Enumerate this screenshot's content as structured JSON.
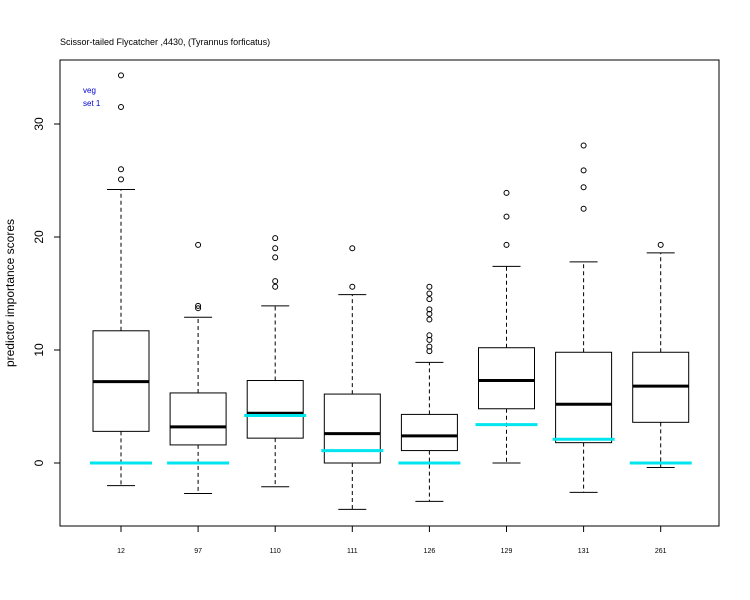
{
  "chart_data": {
    "type": "boxplot",
    "title": "Scissor-tailed Flycatcher ,4430, (Tyrannus forficatus)",
    "ylabel": "predictor importance scores",
    "xlabel": "",
    "annotation": [
      "veg",
      "set 1"
    ],
    "ylim": [
      -5.5,
      36
    ],
    "yticks": [
      0,
      10,
      20,
      30
    ],
    "grid": false,
    "colors": {
      "box": "#000000",
      "median": "#000000",
      "reference": "#00e5ee"
    },
    "categories": [
      "12",
      "97",
      "110",
      "111",
      "126",
      "129",
      "131",
      "261"
    ],
    "boxes": [
      {
        "label": "12",
        "whisker_low": -2.0,
        "q1": 2.8,
        "median": 7.2,
        "q3": 11.7,
        "whisker_high": 24.2,
        "outliers": [
          25.1,
          26.0,
          31.5,
          34.3
        ],
        "reference": 0.0
      },
      {
        "label": "97",
        "whisker_low": -2.7,
        "q1": 1.6,
        "median": 3.2,
        "q3": 6.2,
        "whisker_high": 12.9,
        "outliers": [
          13.7,
          13.9,
          19.3
        ],
        "reference": 0.0
      },
      {
        "label": "110",
        "whisker_low": -2.1,
        "q1": 2.2,
        "median": 4.4,
        "q3": 7.3,
        "whisker_high": 13.9,
        "outliers": [
          15.6,
          16.1,
          18.2,
          19.0,
          19.9
        ],
        "reference": 4.2
      },
      {
        "label": "111",
        "whisker_low": -4.1,
        "q1": 0.0,
        "median": 2.6,
        "q3": 6.1,
        "whisker_high": 14.9,
        "outliers": [
          15.6,
          19.0
        ],
        "reference": 1.1
      },
      {
        "label": "126",
        "whisker_low": -3.4,
        "q1": 1.1,
        "median": 2.4,
        "q3": 4.3,
        "whisker_high": 8.9,
        "outliers": [
          9.9,
          10.3,
          10.9,
          11.3,
          12.7,
          13.2,
          13.6,
          14.5,
          15.0,
          15.6
        ],
        "reference": 0.0
      },
      {
        "label": "129",
        "whisker_low": 0.0,
        "q1": 4.8,
        "median": 7.3,
        "q3": 10.2,
        "whisker_high": 17.4,
        "outliers": [
          19.3,
          21.8,
          23.9
        ],
        "reference": 3.4
      },
      {
        "label": "131",
        "whisker_low": -2.6,
        "q1": 1.8,
        "median": 5.2,
        "q3": 9.8,
        "whisker_high": 17.8,
        "outliers": [
          22.5,
          24.4,
          25.9,
          28.1
        ],
        "reference": 2.1
      },
      {
        "label": "261",
        "whisker_low": -0.4,
        "q1": 3.6,
        "median": 6.8,
        "q3": 9.8,
        "whisker_high": 18.6,
        "outliers": [
          19.3
        ],
        "reference": 0.0
      }
    ]
  }
}
